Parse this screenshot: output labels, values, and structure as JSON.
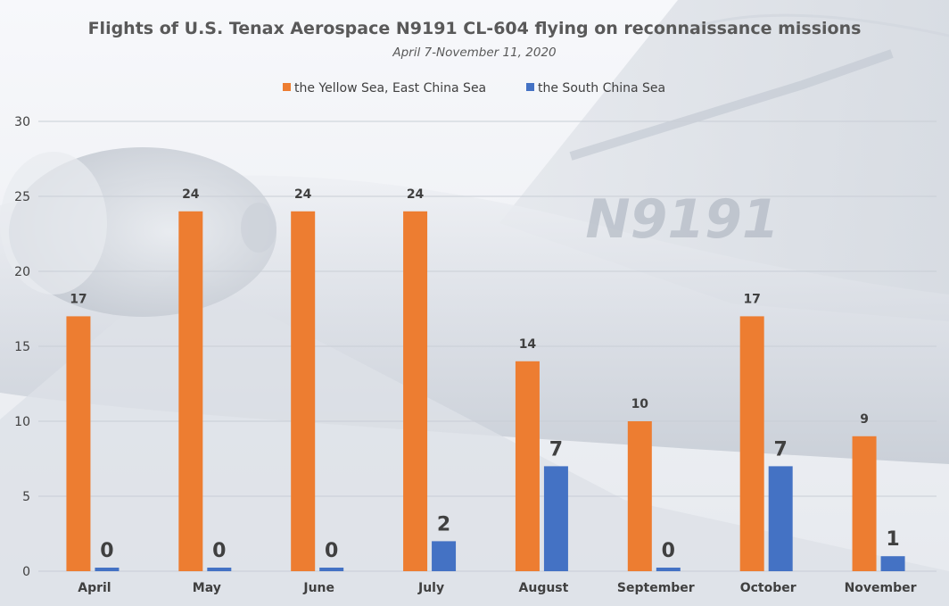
{
  "chart_data": {
    "type": "bar",
    "title": "Flights of U.S. Tenax Aerospace N9191 CL-604 flying on reconnaissance missions",
    "subtitle": "April 7-November 11, 2020",
    "categories": [
      "April",
      "May",
      "June",
      "July",
      "August",
      "September",
      "October",
      "November"
    ],
    "series": [
      {
        "name": "the Yellow Sea, East China Sea",
        "color": "#ED7D31",
        "values": [
          17,
          24,
          24,
          24,
          14,
          10,
          17,
          9
        ]
      },
      {
        "name": "the South China Sea",
        "color": "#4472C4",
        "values": [
          0,
          0,
          0,
          2,
          7,
          0,
          7,
          1
        ]
      }
    ],
    "ylim": [
      0,
      30
    ],
    "yticks": [
      0,
      5,
      10,
      15,
      20,
      25,
      30
    ],
    "grid": true,
    "legend_position": "top-center",
    "background_image_text": "N9191",
    "data_labels": true
  }
}
